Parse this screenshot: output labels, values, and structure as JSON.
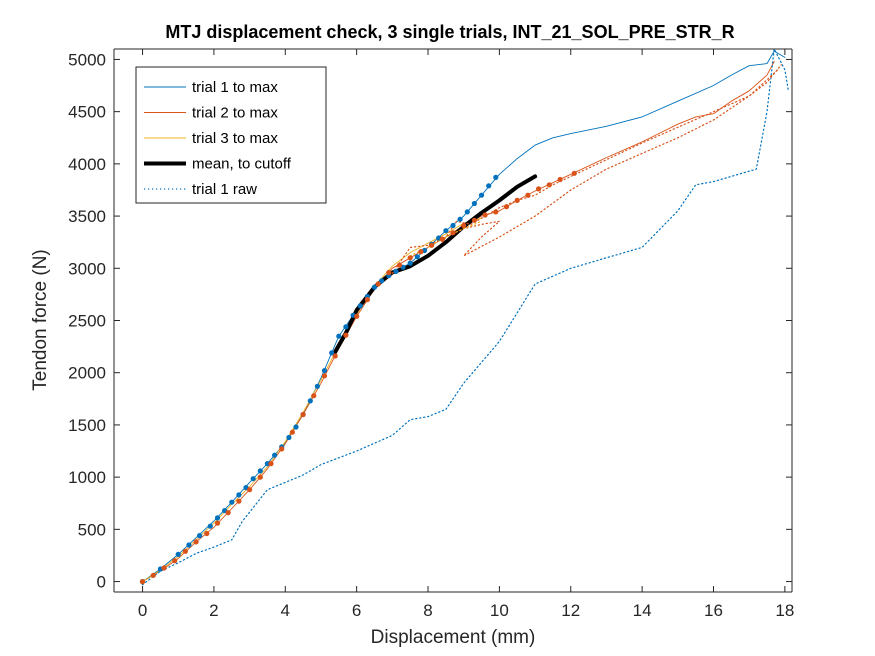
{
  "chart_data": {
    "type": "line",
    "title": "MTJ displacement check, 3 single trials, INT_21_SOL_PRE_STR_R",
    "xlabel": "Displacement (mm)",
    "ylabel": "Tendon force (N)",
    "xlim": [
      -0.8,
      18.2
    ],
    "ylim": [
      -100,
      5100
    ],
    "xticks": [
      "0",
      "2",
      "4",
      "6",
      "8",
      "10",
      "12",
      "14",
      "16",
      "18"
    ],
    "xtick_values": [
      0,
      2,
      4,
      6,
      8,
      10,
      12,
      14,
      16,
      18
    ],
    "yticks": [
      "0",
      "500",
      "1000",
      "1500",
      "2000",
      "2500",
      "3000",
      "3500",
      "4000",
      "4500",
      "5000"
    ],
    "ytick_values": [
      0,
      500,
      1000,
      1500,
      2000,
      2500,
      3000,
      3500,
      4000,
      4500,
      5000
    ],
    "legend_position": "top-left",
    "grid": false,
    "series": [
      {
        "name": "trial 1 to max",
        "color": "#0072BD",
        "style": "solid",
        "width": 0.9,
        "points": [
          [
            0,
            0
          ],
          [
            0.5,
            120
          ],
          [
            1,
            260
          ],
          [
            1.5,
            420
          ],
          [
            2,
            580
          ],
          [
            2.5,
            760
          ],
          [
            3,
            950
          ],
          [
            3.5,
            1130
          ],
          [
            4,
            1330
          ],
          [
            4.5,
            1600
          ],
          [
            5,
            1950
          ],
          [
            5.5,
            2350
          ],
          [
            6,
            2600
          ],
          [
            6.5,
            2820
          ],
          [
            7,
            2950
          ],
          [
            7.5,
            3050
          ],
          [
            8,
            3200
          ],
          [
            8.5,
            3360
          ],
          [
            9,
            3500
          ],
          [
            9.5,
            3700
          ],
          [
            10,
            3900
          ],
          [
            10.5,
            4050
          ],
          [
            11,
            4180
          ],
          [
            11.5,
            4250
          ],
          [
            12,
            4290
          ],
          [
            13,
            4360
          ],
          [
            14,
            4450
          ],
          [
            15,
            4600
          ],
          [
            16,
            4750
          ],
          [
            16.5,
            4850
          ],
          [
            17,
            4940
          ],
          [
            17.5,
            4960
          ],
          [
            17.7,
            5080
          ],
          [
            18,
            5020
          ]
        ]
      },
      {
        "name": "trial 2 to max",
        "color": "#D95319",
        "style": "solid",
        "width": 0.9,
        "points": [
          [
            0,
            0
          ],
          [
            0.5,
            100
          ],
          [
            1,
            220
          ],
          [
            1.5,
            380
          ],
          [
            2,
            520
          ],
          [
            2.5,
            700
          ],
          [
            3,
            880
          ],
          [
            3.5,
            1080
          ],
          [
            4,
            1320
          ],
          [
            4.5,
            1600
          ],
          [
            5,
            1900
          ],
          [
            5.5,
            2230
          ],
          [
            6,
            2540
          ],
          [
            6.5,
            2800
          ],
          [
            7,
            3000
          ],
          [
            7.5,
            3100
          ],
          [
            8,
            3200
          ],
          [
            8.5,
            3300
          ],
          [
            9,
            3410
          ],
          [
            9.5,
            3500
          ],
          [
            10,
            3550
          ],
          [
            10.5,
            3650
          ],
          [
            11,
            3740
          ],
          [
            11.5,
            3820
          ],
          [
            12,
            3900
          ],
          [
            13,
            4060
          ],
          [
            14,
            4210
          ],
          [
            15,
            4380
          ],
          [
            15.5,
            4450
          ],
          [
            16,
            4480
          ],
          [
            16.5,
            4600
          ],
          [
            17,
            4700
          ],
          [
            17.5,
            4850
          ],
          [
            17.7,
            4980
          ]
        ]
      },
      {
        "name": "trial 3 to max",
        "color": "#EDB120",
        "style": "solid",
        "width": 0.9,
        "points": [
          [
            0,
            0
          ],
          [
            0.5,
            110
          ],
          [
            1,
            240
          ],
          [
            1.5,
            400
          ],
          [
            2,
            560
          ],
          [
            2.5,
            740
          ],
          [
            3,
            910
          ],
          [
            3.5,
            1100
          ],
          [
            4,
            1340
          ],
          [
            4.5,
            1620
          ],
          [
            5,
            1930
          ],
          [
            5.5,
            2260
          ],
          [
            6,
            2560
          ],
          [
            6.5,
            2830
          ],
          [
            7,
            3020
          ],
          [
            7.5,
            3150
          ],
          [
            8,
            3240
          ],
          [
            8.5,
            3330
          ],
          [
            9,
            3430
          ],
          [
            9.5,
            3480
          ]
        ]
      },
      {
        "name": "mean, to cutoff",
        "color": "#000000",
        "style": "solid",
        "width": 4,
        "points": [
          [
            5.4,
            2200
          ],
          [
            5.7,
            2380
          ],
          [
            6,
            2600
          ],
          [
            6.5,
            2820
          ],
          [
            7,
            2960
          ],
          [
            7.5,
            3020
          ],
          [
            8,
            3120
          ],
          [
            8.5,
            3250
          ],
          [
            9,
            3400
          ],
          [
            9.5,
            3530
          ],
          [
            10,
            3650
          ],
          [
            10.5,
            3780
          ],
          [
            11,
            3880
          ]
        ]
      },
      {
        "name": "trial 1 raw",
        "color": "#0072BD",
        "style": "dotted",
        "width": 1.2,
        "points": [
          [
            0,
            -30
          ],
          [
            0.5,
            100
          ],
          [
            1,
            180
          ],
          [
            1.5,
            270
          ],
          [
            2,
            330
          ],
          [
            2.5,
            400
          ],
          [
            2.8,
            580
          ],
          [
            3.2,
            750
          ],
          [
            3.5,
            880
          ],
          [
            4,
            950
          ],
          [
            4.5,
            1020
          ],
          [
            5,
            1120
          ],
          [
            6,
            1250
          ],
          [
            7,
            1400
          ],
          [
            7.5,
            1550
          ],
          [
            8,
            1580
          ],
          [
            8.5,
            1650
          ],
          [
            9,
            1900
          ],
          [
            10,
            2300
          ],
          [
            11,
            2850
          ],
          [
            12,
            3000
          ],
          [
            13,
            3100
          ],
          [
            14,
            3200
          ],
          [
            15,
            3550
          ],
          [
            15.5,
            3800
          ],
          [
            16,
            3830
          ],
          [
            16.5,
            3880
          ],
          [
            17.2,
            3950
          ],
          [
            17.5,
            4500
          ],
          [
            17.7,
            5100
          ],
          [
            18,
            4900
          ],
          [
            18.1,
            4700
          ]
        ]
      },
      {
        "name": "",
        "color": "#D95319",
        "style": "dotted",
        "width": 1.2,
        "points": [
          [
            8.4,
            3250
          ],
          [
            8.8,
            3450
          ],
          [
            9.2,
            3420
          ],
          [
            9.6,
            3500
          ],
          [
            10,
            3580
          ],
          [
            10.5,
            3650
          ],
          [
            11,
            3700
          ],
          [
            11.5,
            3800
          ],
          [
            12,
            3880
          ],
          [
            13,
            4040
          ],
          [
            14,
            4200
          ],
          [
            15,
            4350
          ],
          [
            16,
            4500
          ],
          [
            17,
            4650
          ],
          [
            17.8,
            4900
          ]
        ]
      },
      {
        "name": "",
        "color": "#D95319",
        "style": "dotted",
        "width": 1.2,
        "points": [
          [
            7,
            2950
          ],
          [
            7.5,
            3200
          ],
          [
            8,
            3220
          ],
          [
            8.5,
            3300
          ],
          [
            9,
            3380
          ],
          [
            9.5,
            3420
          ],
          [
            10,
            3450
          ],
          [
            9.5,
            3300
          ],
          [
            9,
            3120
          ],
          [
            10,
            3300
          ],
          [
            11,
            3500
          ],
          [
            12,
            3750
          ],
          [
            13,
            3950
          ],
          [
            14,
            4100
          ],
          [
            15,
            4250
          ],
          [
            16,
            4420
          ],
          [
            17,
            4650
          ],
          [
            17.5,
            4780
          ],
          [
            17.9,
            4950
          ]
        ]
      },
      {
        "name": "",
        "color": "#EDB120",
        "style": "dotted",
        "width": 1.2,
        "points": [
          [
            7.5,
            3120
          ],
          [
            8,
            3200
          ],
          [
            8.5,
            3300
          ],
          [
            9,
            3380
          ],
          [
            9.5,
            3450
          ]
        ]
      }
    ],
    "markers": [
      {
        "color": "#0072BD",
        "radius": 2.6,
        "points": [
          [
            0,
            0
          ],
          [
            0.5,
            120
          ],
          [
            1,
            260
          ],
          [
            1.3,
            350
          ],
          [
            1.6,
            440
          ],
          [
            1.9,
            530
          ],
          [
            2.1,
            610
          ],
          [
            2.3,
            680
          ],
          [
            2.5,
            760
          ],
          [
            2.7,
            830
          ],
          [
            2.9,
            900
          ],
          [
            3.1,
            985
          ],
          [
            3.3,
            1060
          ],
          [
            3.5,
            1130
          ],
          [
            3.7,
            1210
          ],
          [
            3.9,
            1290
          ],
          [
            4.1,
            1380
          ],
          [
            4.3,
            1480
          ],
          [
            4.5,
            1600
          ],
          [
            4.7,
            1730
          ],
          [
            4.9,
            1870
          ],
          [
            5.1,
            2020
          ],
          [
            5.3,
            2190
          ],
          [
            5.5,
            2350
          ],
          [
            5.7,
            2440
          ],
          [
            5.9,
            2550
          ],
          [
            6.1,
            2640
          ],
          [
            6.3,
            2730
          ],
          [
            6.5,
            2820
          ],
          [
            6.7,
            2880
          ],
          [
            6.9,
            2930
          ],
          [
            7.1,
            2970
          ],
          [
            7.3,
            3010
          ],
          [
            7.5,
            3050
          ],
          [
            7.7,
            3110
          ],
          [
            7.9,
            3170
          ],
          [
            8.1,
            3230
          ],
          [
            8.3,
            3290
          ],
          [
            8.5,
            3360
          ],
          [
            8.7,
            3410
          ],
          [
            8.9,
            3470
          ],
          [
            9.1,
            3540
          ],
          [
            9.3,
            3620
          ],
          [
            9.5,
            3700
          ],
          [
            9.7,
            3790
          ],
          [
            9.9,
            3870
          ]
        ]
      },
      {
        "color": "#D95319",
        "radius": 2.6,
        "points": [
          [
            0,
            0
          ],
          [
            0.3,
            60
          ],
          [
            0.6,
            130
          ],
          [
            0.9,
            200
          ],
          [
            1.2,
            290
          ],
          [
            1.5,
            380
          ],
          [
            1.8,
            460
          ],
          [
            2.1,
            560
          ],
          [
            2.4,
            660
          ],
          [
            2.7,
            770
          ],
          [
            3,
            880
          ],
          [
            3.3,
            1000
          ],
          [
            3.6,
            1130
          ],
          [
            3.9,
            1270
          ],
          [
            4.2,
            1430
          ],
          [
            4.5,
            1600
          ],
          [
            4.8,
            1780
          ],
          [
            5.1,
            1970
          ],
          [
            5.4,
            2160
          ],
          [
            5.7,
            2360
          ],
          [
            6,
            2540
          ],
          [
            6.3,
            2700
          ],
          [
            6.6,
            2850
          ],
          [
            6.9,
            2960
          ],
          [
            7.2,
            3030
          ],
          [
            7.5,
            3100
          ],
          [
            7.8,
            3160
          ],
          [
            8.1,
            3220
          ],
          [
            8.4,
            3280
          ],
          [
            8.7,
            3340
          ],
          [
            9,
            3410
          ],
          [
            9.3,
            3460
          ],
          [
            9.6,
            3510
          ],
          [
            9.9,
            3540
          ],
          [
            10.2,
            3590
          ],
          [
            10.5,
            3650
          ],
          [
            10.8,
            3700
          ],
          [
            11.1,
            3760
          ],
          [
            11.4,
            3800
          ],
          [
            11.7,
            3850
          ],
          [
            12.1,
            3910
          ]
        ]
      }
    ],
    "legend_entries": [
      {
        "label": "trial 1 to max",
        "color": "#0072BD",
        "style": "solid",
        "width": 1
      },
      {
        "label": "trial 2 to max",
        "color": "#D95319",
        "style": "solid",
        "width": 1
      },
      {
        "label": "trial 3 to max",
        "color": "#EDB120",
        "style": "solid",
        "width": 1
      },
      {
        "label": "mean, to cutoff",
        "color": "#000000",
        "style": "solid",
        "width": 4
      },
      {
        "label": "trial 1 raw",
        "color": "#0072BD",
        "style": "dotted",
        "width": 1.2
      }
    ]
  }
}
